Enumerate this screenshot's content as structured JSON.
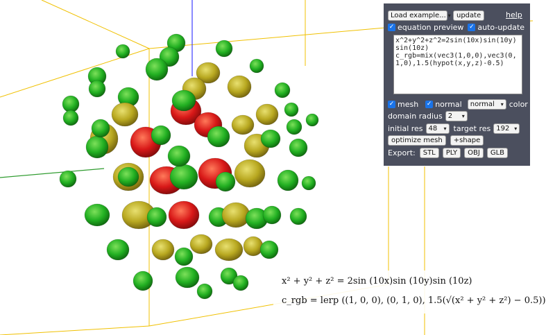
{
  "panel": {
    "load_example": "Load example...",
    "update_label": "update",
    "help_label": "help",
    "equation_preview_label": "equation preview",
    "auto_update_label": "auto-update",
    "equation_text": "x^2+y^2+z^2=2sin(10x)sin(10y)sin(10z)\nc_rgb=mix(vec3(1,0,0),vec3(0,1,0),1.5(hypot(x,y,z)-0.5)",
    "mesh_label": "mesh",
    "normal_label": "normal",
    "color_mode": "normal",
    "color_label": "color",
    "domain_radius_label": "domain radius",
    "domain_radius_value": "2",
    "initial_res_label": "initial res",
    "initial_res_value": "48",
    "target_res_label": "target res",
    "target_res_value": "192",
    "optimize_mesh_label": "optimize mesh",
    "shape_label": "+shape",
    "export_label": "Export:",
    "export_formats": [
      "STL",
      "PLY",
      "OBJ",
      "GLB"
    ]
  },
  "formula": {
    "line1_lhs": "x² + y² + z² = 2sin (10x)sin (10y)sin (10z)",
    "line2": "c_rgb = lerp ((1, 0, 0), (0, 1, 0), 1.5(√(x² + y² + z²) − 0.5))"
  },
  "colors": {
    "panel_bg": "#4b4f5e",
    "axis_x": "#2e9b2e",
    "axis_z": "#3c3cff",
    "box_lines": "#f0c000",
    "blob_green": "#22b022",
    "blob_yellow": "#b8b020",
    "blob_red": "#d81818"
  },
  "icons": {
    "checkbox": "check-icon",
    "dropdown": "chevron-down-icon"
  }
}
